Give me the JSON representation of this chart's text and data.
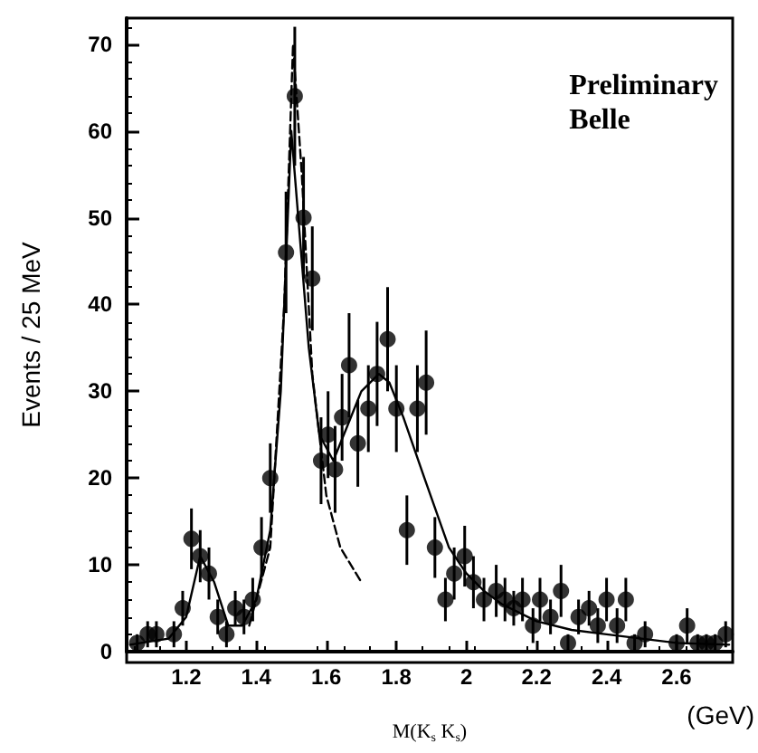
{
  "chart_data": {
    "type": "scatter",
    "xlabel": "M(K$_{s}$ K$_{s}$)",
    "ylabel": "Events / 25 MeV",
    "annotations": [
      "Preliminary\nBelle",
      "(GeV)"
    ],
    "xlim": [
      1.03,
      2.76
    ],
    "xticks": [
      1.2,
      1.4,
      1.6,
      1.8,
      2,
      2.2,
      2.4,
      2.6
    ],
    "ylim": [
      0,
      73
    ],
    "yticks": [
      0,
      10,
      20,
      30,
      40,
      50,
      60,
      70
    ],
    "grid": false,
    "marker": "circle",
    "series": [
      {
        "color": "#000000",
        "x": [
          1.06,
          1.09,
          1.115,
          1.165,
          1.19,
          1.215,
          1.24,
          1.265,
          1.29,
          1.315,
          1.34,
          1.365,
          1.39,
          1.415,
          1.44,
          1.485,
          1.51,
          1.535,
          1.56,
          1.585,
          1.605,
          1.625,
          1.645,
          1.665,
          1.69,
          1.72,
          1.745,
          1.775,
          1.8,
          1.83,
          1.86,
          1.885,
          1.91,
          1.94,
          1.965,
          1.995,
          2.02,
          2.05,
          2.085,
          2.11,
          2.135,
          2.16,
          2.19,
          2.21,
          2.24,
          2.27,
          2.29,
          2.32,
          2.35,
          2.375,
          2.4,
          2.43,
          2.455,
          2.48,
          2.51,
          2.6,
          2.63,
          2.66,
          2.685,
          2.71,
          2.74
        ],
        "values": [
          1,
          2,
          2,
          2,
          5,
          13,
          11,
          9,
          4,
          2,
          5,
          4,
          6,
          12,
          20,
          46,
          64,
          50,
          43,
          22,
          25,
          21,
          27,
          33,
          24,
          28,
          32,
          36,
          28,
          14,
          28,
          31,
          12,
          6,
          9,
          11,
          8,
          6,
          7,
          6,
          5,
          6,
          3,
          6,
          4,
          7,
          1,
          4,
          5,
          3,
          6,
          3,
          6,
          1,
          2,
          1,
          3,
          1,
          1,
          1,
          2
        ],
        "errors": [
          1,
          1.5,
          1.5,
          1.5,
          2,
          3.5,
          3,
          3,
          2,
          1.5,
          2,
          2,
          2.5,
          3.5,
          4,
          7,
          8,
          7,
          6,
          5,
          5,
          5,
          5,
          6,
          5,
          5,
          6,
          6,
          5,
          4,
          5,
          6,
          3.5,
          2.5,
          3,
          3.5,
          3,
          2.5,
          3,
          2.5,
          2,
          2.5,
          2,
          2.5,
          2,
          3,
          1,
          2,
          2,
          2,
          2.5,
          2,
          2.5,
          1,
          1.5,
          1,
          2,
          1,
          1,
          1,
          1.5
        ]
      },
      {
        "type": "line",
        "line_style": "solid",
        "color": "#000000",
        "marker": "none",
        "x": [
          1.04,
          1.1,
          1.15,
          1.2,
          1.24,
          1.28,
          1.32,
          1.36,
          1.4,
          1.44,
          1.47,
          1.5,
          1.52,
          1.55,
          1.58,
          1.62,
          1.66,
          1.7,
          1.75,
          1.78,
          1.82,
          1.88,
          1.95,
          2.0,
          2.05,
          2.1,
          2.2,
          2.3,
          2.4,
          2.5,
          2.6,
          2.75
        ],
        "values": [
          0.8,
          1.2,
          1.5,
          4,
          11,
          8,
          3,
          3,
          6,
          14,
          30,
          60,
          50,
          35,
          25,
          22,
          26,
          30,
          32,
          31,
          27,
          20,
          12,
          9,
          7,
          5.5,
          3.5,
          2.5,
          2,
          1.5,
          1,
          0.8
        ]
      },
      {
        "type": "line",
        "line_style": "dashed",
        "color": "#000000",
        "marker": "none",
        "x": [
          1.38,
          1.44,
          1.48,
          1.505,
          1.53,
          1.56,
          1.6,
          1.64,
          1.7
        ],
        "values": [
          3,
          12,
          40,
          70,
          55,
          32,
          18,
          12,
          8
        ]
      }
    ]
  }
}
